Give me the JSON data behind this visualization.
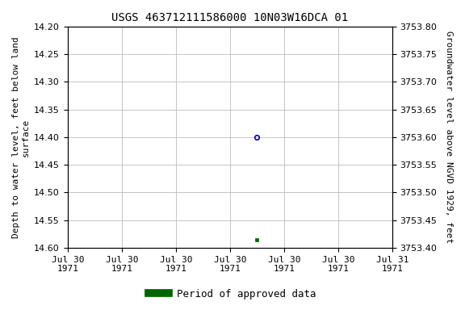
{
  "title": "USGS 463712111586000 10N03W16DCA 01",
  "ylabel_left": "Depth to water level, feet below land\nsurface",
  "ylabel_right": "Groundwater level above NGVD 1929, feet",
  "ylim_left_top": 14.2,
  "ylim_left_bottom": 14.6,
  "ylim_right_top": 3753.8,
  "ylim_right_bottom": 3753.4,
  "yticks_left": [
    14.2,
    14.25,
    14.3,
    14.35,
    14.4,
    14.45,
    14.5,
    14.55,
    14.6
  ],
  "yticks_right": [
    3753.8,
    3753.75,
    3753.7,
    3753.65,
    3753.6,
    3753.55,
    3753.5,
    3753.45,
    3753.4
  ],
  "point_open_x": 3.5,
  "point_open_y": 14.4,
  "point_open_color": "#0000cc",
  "point_filled_x": 3.5,
  "point_filled_y": 14.585,
  "point_filled_color": "#006600",
  "xlim": [
    0,
    6
  ],
  "n_xticks": 7,
  "xtick_labels": [
    "Jul 30\n1971",
    "Jul 30\n1971",
    "Jul 30\n1971",
    "Jul 30\n1971",
    "Jul 30\n1971",
    "Jul 30\n1971",
    "Jul 31\n1971"
  ],
  "grid_color": "#bbbbbb",
  "background_color": "#ffffff",
  "legend_label": "Period of approved data",
  "legend_color": "#006600",
  "title_fontsize": 10,
  "ylabel_fontsize": 8,
  "tick_fontsize": 8,
  "legend_fontsize": 9
}
